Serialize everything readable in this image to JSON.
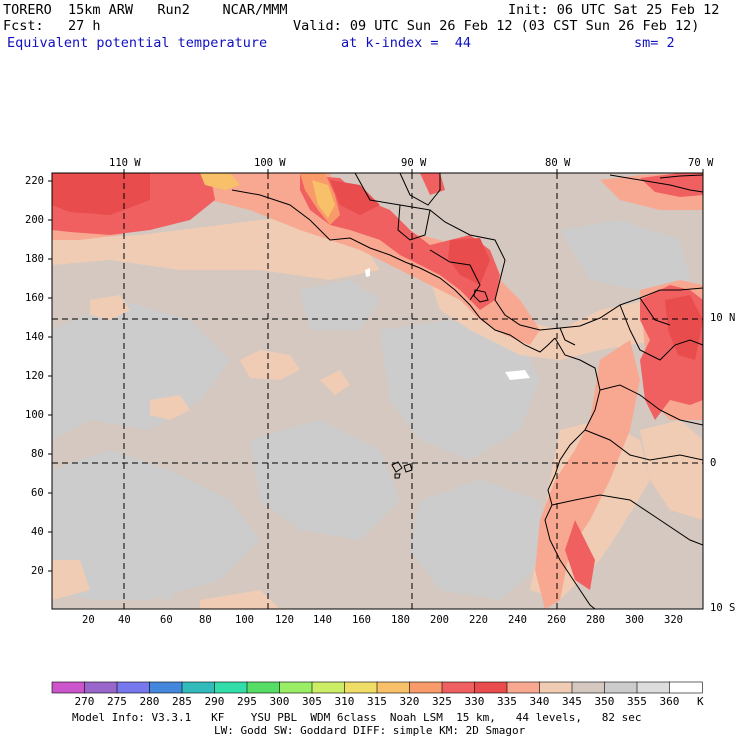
{
  "header": {
    "model": "TORERO  15km ARW   Run2    NCAR/MMM",
    "init": "Init: 06 UTC Sat 25 Feb 12",
    "fcst": "Fcst:   27 h",
    "valid": "Valid: 09 UTC Sun 26 Feb 12 (03 CST Sun 26 Feb 12)",
    "field": "Equivalent potential temperature",
    "level": "at k-index =  44",
    "smooth": "sm= 2"
  },
  "top_ticks": [
    "110 W",
    "100 W",
    "90 W",
    "80 W",
    "70 W"
  ],
  "right_ticks": [
    "10 N",
    "0",
    "10 S"
  ],
  "y_ticks": [
    "220",
    "200",
    "180",
    "160",
    "140",
    "120",
    "100",
    "80",
    "60",
    "40",
    "20"
  ],
  "x_ticks": [
    "20",
    "40",
    "60",
    "80",
    "100",
    "120",
    "140",
    "160",
    "180",
    "200",
    "220",
    "240",
    "260",
    "280",
    "300",
    "320"
  ],
  "colorbar": {
    "levels": [
      "270",
      "275",
      "280",
      "285",
      "290",
      "295",
      "300",
      "305",
      "310",
      "315",
      "320",
      "325",
      "330",
      "335",
      "340",
      "345",
      "350",
      "355",
      "360"
    ],
    "unit": "K",
    "colors": [
      "#cc55cc",
      "#9966cc",
      "#7777ee",
      "#4488dd",
      "#33bbbb",
      "#33ddaa",
      "#55dd66",
      "#99ee66",
      "#ccee66",
      "#eedd66",
      "#f8c068",
      "#f89a6a",
      "#f06060",
      "#e84c4c",
      "#f8a890",
      "#f0ccb4",
      "#d4c8c0",
      "#cccccc",
      "#dddddd",
      "#ffffff"
    ]
  },
  "model_info": {
    "line1": "Model Info: V3.3.1   KF    YSU PBL  WDM 6class  Noah LSM  15 km,   44 levels,   82 sec",
    "line2": "LW: Godd SW: Goddard DIFF: simple KM: 2D Smagor"
  }
}
